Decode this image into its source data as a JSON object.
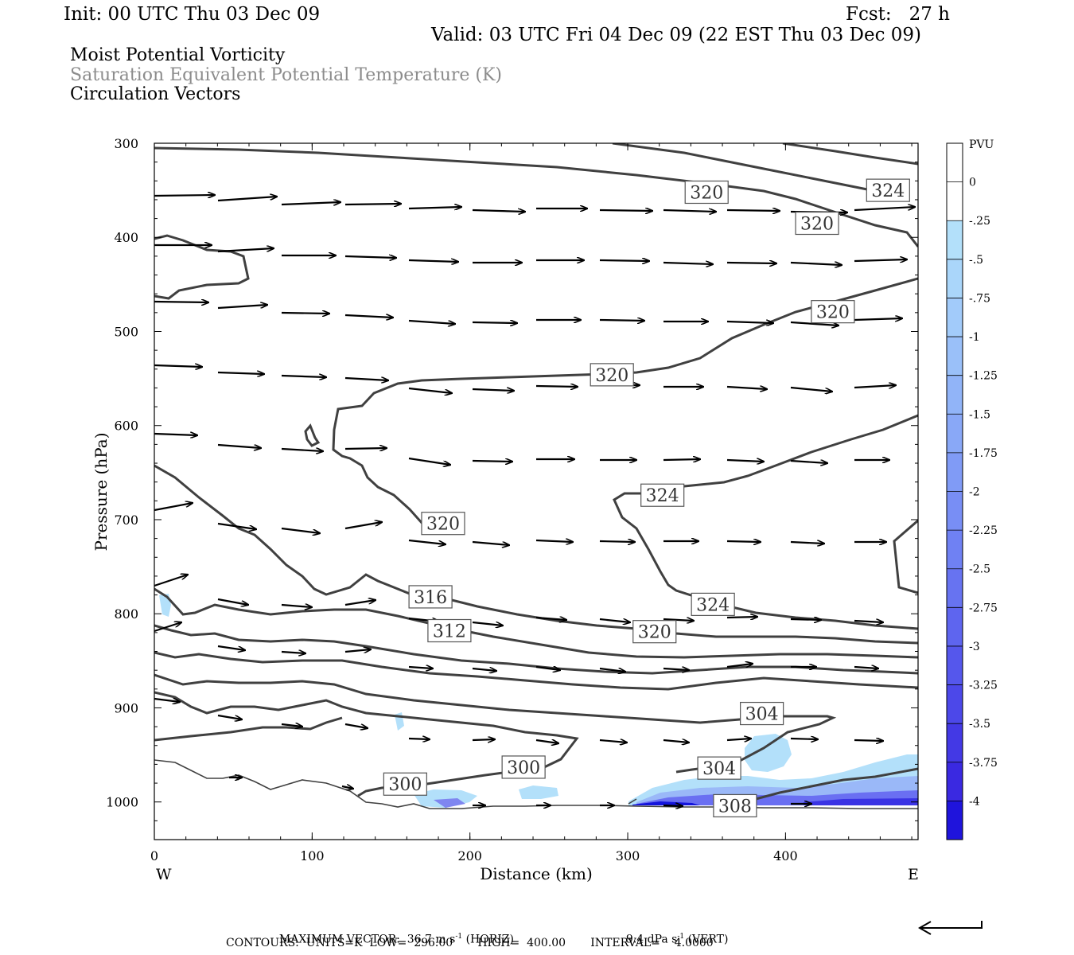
{
  "header": {
    "init": "Init: 00 UTC Thu 03 Dec 09",
    "fcst": "Fcst:   27 h",
    "valid": "Valid: 03 UTC Fri 04 Dec 09 (22 EST Thu 03 Dec 09)"
  },
  "fields": {
    "line1": "Moist Potential Vorticity",
    "line2": "Saturation Equivalent Potential Temperature (K)",
    "line3": "Circulation Vectors"
  },
  "footer": {
    "max_vector_label": "MAXIMUM VECTOR:",
    "max_vector_horiz": "36.7 m s",
    "horiz_sup": "-1",
    "horiz_tag": "(HORIZ)",
    "max_vector_vert": "9.4 dPa s",
    "vert_sup": "-1",
    "vert_tag": "(VERT)",
    "contours": "CONTOURS:  UNITS=K  LOW=  296.00       HIGH=  400.00       INTERVAL=    4.0000"
  },
  "colors": {
    "contour": "#404040",
    "vector": "#000000",
    "pv_light": "#b3e0fa",
    "pv_dark": "#1010e0"
  },
  "chart_data": {
    "type": "contour",
    "xlabel": "Distance (km)",
    "ylabel": "Pressure (hPa)",
    "xlim": [
      0,
      484
    ],
    "ylim": [
      1040,
      300
    ],
    "x_ticks": [
      0,
      100,
      200,
      300,
      400
    ],
    "y_ticks": [
      300,
      400,
      500,
      600,
      700,
      800,
      900,
      1000
    ],
    "x_end_labels": {
      "left": "W",
      "right": "E"
    },
    "colorbar": {
      "unit": "PVU",
      "levels": [
        "0",
        "-.25",
        "-.5",
        "-.75",
        "-1",
        "-1.25",
        "-1.5",
        "-1.75",
        "-2",
        "-2.25",
        "-2.5",
        "-2.75",
        "-3",
        "-3.25",
        "-3.5",
        "-3.75",
        "-4"
      ],
      "colors": [
        "#ffffff",
        "#ffffff",
        "#b3e0fa",
        "#aad6fa",
        "#a2cbfa",
        "#9ac0f9",
        "#91b4f8",
        "#89a8f7",
        "#809bf6",
        "#788ef5",
        "#6f81f3",
        "#6773f1",
        "#5e65ef",
        "#5557ec",
        "#4c48e9",
        "#4339e5",
        "#3a29e1",
        "#1f14dc"
      ]
    },
    "contour_labels": [
      {
        "text": "320",
        "x": 350,
        "p": 352
      },
      {
        "text": "324",
        "x": 465,
        "p": 350
      },
      {
        "text": "320",
        "x": 420,
        "p": 385
      },
      {
        "text": "320",
        "x": 430,
        "p": 479
      },
      {
        "text": "320",
        "x": 290,
        "p": 546
      },
      {
        "text": "324",
        "x": 322,
        "p": 674
      },
      {
        "text": "320",
        "x": 183,
        "p": 704
      },
      {
        "text": "316",
        "x": 175,
        "p": 782
      },
      {
        "text": "324",
        "x": 354,
        "p": 790
      },
      {
        "text": "312",
        "x": 187,
        "p": 818
      },
      {
        "text": "320",
        "x": 317,
        "p": 819
      },
      {
        "text": "304",
        "x": 385,
        "p": 906
      },
      {
        "text": "300",
        "x": 234,
        "p": 963
      },
      {
        "text": "304",
        "x": 358,
        "p": 964
      },
      {
        "text": "300",
        "x": 159,
        "p": 981
      },
      {
        "text": "308",
        "x": 368,
        "p": 1004
      }
    ]
  }
}
